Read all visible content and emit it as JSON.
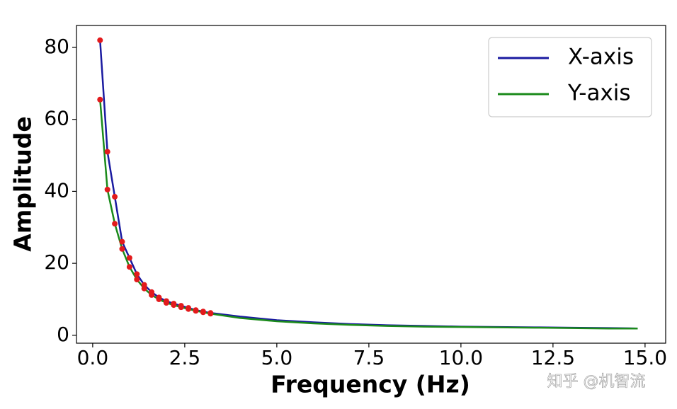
{
  "chart_data": {
    "type": "line",
    "xlabel": "Frequency (Hz)",
    "ylabel": "Amplitude",
    "x": [
      0.2,
      0.4,
      0.6,
      0.8,
      1.0,
      1.2,
      1.4,
      1.6,
      1.8,
      2.0,
      2.2,
      2.4,
      2.6,
      2.8,
      3.0,
      3.2,
      4,
      5,
      6,
      7,
      8,
      9,
      10,
      11,
      12,
      13,
      14,
      14.8
    ],
    "series": [
      {
        "name": "X-axis",
        "color": "#1a1aa0",
        "values": [
          82,
          51,
          38.5,
          26,
          21.5,
          17,
          14,
          12,
          10.5,
          9.5,
          8.8,
          8.2,
          7.6,
          7,
          6.6,
          6.2,
          5.2,
          4.2,
          3.6,
          3.1,
          2.8,
          2.6,
          2.4,
          2.3,
          2.2,
          2.1,
          2.0,
          1.9
        ]
      },
      {
        "name": "Y-axis",
        "color": "#1a8a1a",
        "values": [
          65.5,
          40.5,
          31,
          24,
          19,
          15.5,
          13,
          11.2,
          10,
          9,
          8.4,
          7.8,
          7.3,
          6.8,
          6.4,
          6.0,
          4.8,
          3.9,
          3.3,
          2.9,
          2.6,
          2.4,
          2.3,
          2.2,
          2.1,
          2.0,
          1.9,
          1.9
        ]
      }
    ],
    "marker_color": "#e31a1c",
    "marker_count": 16,
    "xlim": [
      -0.44,
      15.56
    ],
    "xticks": [
      {
        "value": 0,
        "label": "0.0"
      },
      2.5,
      {
        "value": 5,
        "label": "5.0"
      },
      7.5,
      {
        "value": 10,
        "label": "10.0"
      },
      12.5,
      {
        "value": 15,
        "label": "15.0"
      }
    ],
    "ylim": [
      -2.2,
      86.1
    ],
    "yticks": [
      0,
      20,
      40,
      60,
      80
    ],
    "grid": false,
    "legend": "upper right",
    "watermark": "知乎 @机智流"
  }
}
